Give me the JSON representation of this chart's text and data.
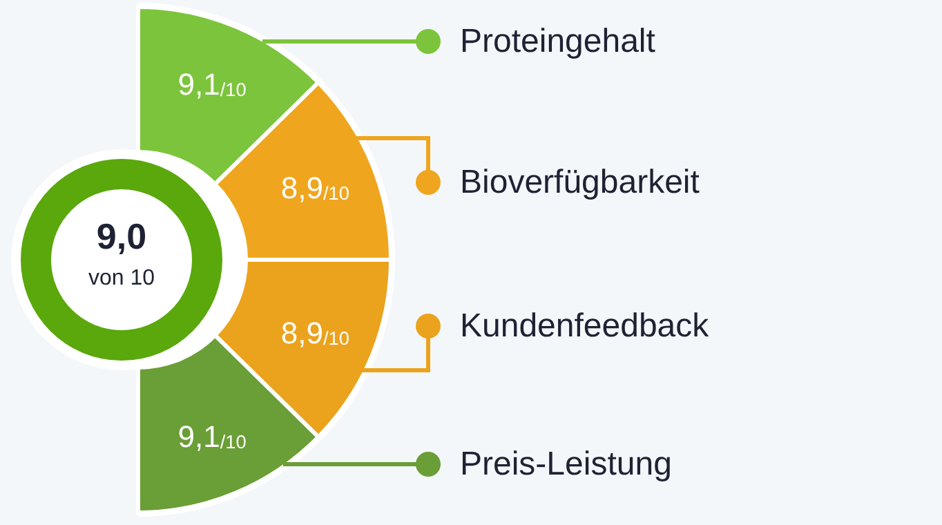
{
  "chart_data": {
    "type": "other",
    "categories": [
      "Proteingehalt",
      "Bioverfügbarkeit",
      "Kundenfeedback",
      "Preis-Leistung"
    ],
    "values": [
      9.1,
      8.9,
      8.9,
      9.1
    ],
    "value_labels": [
      "9,1$_{/10}$",
      "8,9$_{/10}$",
      "8,9$_{/10}$",
      "9,1$_{/10}$"
    ],
    "colors": [
      "#7cc43c",
      "#f0a51e",
      "#eba21c",
      "#6a9e36"
    ],
    "annotations": [
      "9,0",
      "von 10"
    ]
  }
}
